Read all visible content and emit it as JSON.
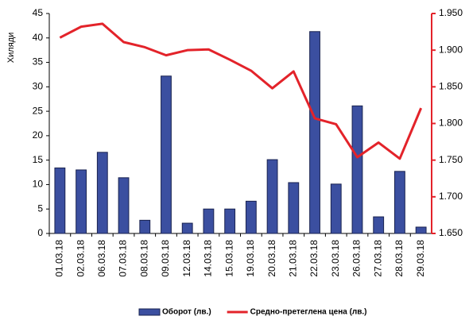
{
  "chart_data": {
    "type": "bar+line",
    "y_axis_label": "Хиляди",
    "categories": [
      "01.03.18",
      "02.03.18",
      "06.03.18",
      "07.03.18",
      "08.03.18",
      "09.03.18",
      "12.03.18",
      "14.03.18",
      "15.03.18",
      "19.03.18",
      "20.03.18",
      "21.03.18",
      "22.03.18",
      "23.03.18",
      "26.03.18",
      "27.03.18",
      "28.03.18",
      "29.03.18"
    ],
    "series": [
      {
        "name": "Оборот (лв.)",
        "type": "bar",
        "color": "#3b4fa0",
        "axis": "y",
        "values": [
          13.4,
          13.0,
          16.6,
          11.4,
          2.7,
          32.2,
          2.1,
          5.0,
          5.0,
          6.6,
          15.1,
          10.4,
          41.3,
          10.1,
          26.1,
          3.4,
          12.7,
          1.3
        ]
      },
      {
        "name": "Средно-претеглена цена (лв.)",
        "type": "line",
        "color": "#e3232a",
        "axis": "y2",
        "values": [
          1.917,
          1.932,
          1.936,
          1.911,
          1.904,
          1.893,
          1.9,
          1.901,
          1.887,
          1.872,
          1.848,
          1.871,
          1.807,
          1.799,
          1.754,
          1.774,
          1.752,
          1.821
        ]
      }
    ],
    "ylim": [
      0,
      45
    ],
    "yticks": [
      0,
      5,
      10,
      15,
      20,
      25,
      30,
      35,
      40,
      45
    ],
    "y2lim": [
      1.65,
      1.95
    ],
    "y2ticks": [
      {
        "value": 1.65,
        "label": "1.650"
      },
      {
        "value": 1.7,
        "label": "1.700"
      },
      {
        "value": 1.75,
        "label": "1.750"
      },
      {
        "value": 1.8,
        "label": "1.800"
      },
      {
        "value": 1.85,
        "label": "1.850"
      },
      {
        "value": 1.9,
        "label": "1.900"
      },
      {
        "value": 1.95,
        "label": "1.950"
      }
    ],
    "legend": "bottom",
    "grid": false
  }
}
